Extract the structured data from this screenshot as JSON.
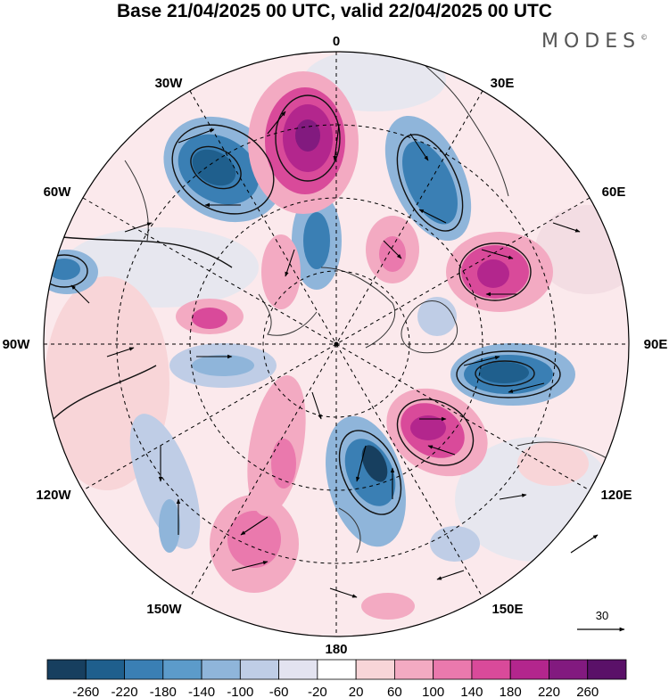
{
  "title": "Base 21/04/2025 00 UTC, valid 22/04/2025 00 UTC",
  "logo": "MODES",
  "logo_mark": "©",
  "meridian_labels": {
    "m0": "0",
    "m30e": "30E",
    "m60e": "60E",
    "m90e": "90E",
    "m120e": "120E",
    "m150e": "150E",
    "m180": "180",
    "m150w": "150W",
    "m120w": "120W",
    "m90w": "90W",
    "m60w": "60W",
    "m30w": "30W"
  },
  "vector_reference": "30",
  "colorbar": {
    "ticks": [
      "-260",
      "-220",
      "-180",
      "-140",
      "-100",
      "-60",
      "-20",
      "20",
      "60",
      "100",
      "140",
      "180",
      "220",
      "260"
    ],
    "colors": [
      "#173f5f",
      "#1f5f8d",
      "#3a7fb4",
      "#5c9bca",
      "#8fb5da",
      "#bfcde6",
      "#e3e3f0",
      "#ffffff",
      "#f8d5d8",
      "#f3aac2",
      "#ea79ad",
      "#d94a9a",
      "#b3268d",
      "#821a7f",
      "#5a1168"
    ]
  }
}
